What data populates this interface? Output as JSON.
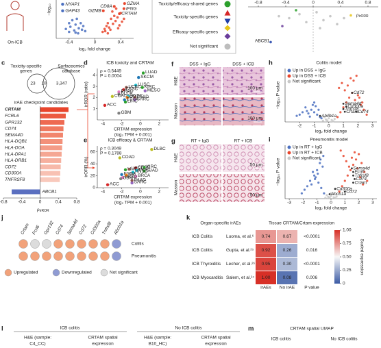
{
  "panel_a": {
    "label": "On-ICB",
    "y_label": "−log₁₀",
    "x_label": "log₂ fold change",
    "xlim": [
      -0.6,
      0.6
    ],
    "ylim": [
      0,
      5
    ],
    "xticks": [
      -0.4,
      0,
      0.4
    ],
    "down": {
      "x": [
        -0.45,
        -0.4,
        -0.38,
        -0.35,
        -0.32,
        -0.3,
        -0.28,
        -0.25,
        -0.22,
        -0.2,
        -0.18,
        -0.15,
        -0.3,
        -0.4,
        -0.26
      ],
      "y": [
        1.2,
        2.0,
        1.5,
        2.4,
        1.0,
        1.8,
        2.6,
        1.3,
        2.0,
        1.1,
        1.6,
        0.9,
        0.7,
        0.8,
        0.6
      ]
    },
    "up": {
      "x": [
        0.12,
        0.15,
        0.18,
        0.2,
        0.22,
        0.25,
        0.28,
        0.3,
        0.32,
        0.35,
        0.38,
        0.4,
        0.42,
        0.45,
        0.2,
        0.27,
        0.33,
        0.16,
        0.24,
        0.36
      ],
      "y": [
        0.8,
        1.2,
        1.6,
        2.0,
        1.4,
        2.6,
        1.9,
        3.0,
        2.3,
        2.8,
        1.7,
        3.4,
        2.2,
        2.6,
        0.6,
        3.6,
        4.0,
        0.9,
        1.1,
        1.3
      ]
    },
    "down_color": "#4a6fc0",
    "up_color": "#e8452c",
    "down_genes": [
      {
        "name": "NYAP1",
        "x": -0.5,
        "y": 4.6
      },
      {
        "name": "GAP43",
        "x": -0.5,
        "y": 3.7
      }
    ],
    "up_genes": [
      {
        "name": "GZMA",
        "x": 0.46,
        "y": 4.7
      },
      {
        "name": "CD8A",
        "x": 0.3,
        "y": 4.3
      },
      {
        "name": "IFNG",
        "x": 0.45,
        "y": 4.0
      },
      {
        "name": "GZMB",
        "x": 0.13,
        "y": 3.7
      },
      {
        "name": "CRTAM",
        "x": 0.38,
        "y": 3.3
      }
    ]
  },
  "panel_b": {
    "legend": [
      {
        "label": "Toxicity/efficacy-shared genes",
        "markers": [
          {
            "shape": "circle",
            "color": "#2ca02c"
          }
        ]
      },
      {
        "label": "Toxicity-specific genes",
        "markers": [
          {
            "shape": "triangle-up",
            "color": "#d62728"
          },
          {
            "shape": "triangle-down",
            "color": "#1f3fa8"
          }
        ]
      },
      {
        "label": "Efficacy-specific genes",
        "markers": [
          {
            "shape": "diamond",
            "color": "#e6c619"
          },
          {
            "shape": "diamond",
            "color": "#6a3d9a"
          }
        ]
      },
      {
        "label": "Not significant",
        "markers": [
          {
            "shape": "circle",
            "color": "#bdbdbd"
          }
        ]
      }
    ],
    "x_label": "ρ",
    "x_label_sub": "irORR",
    "xlim": [
      -0.95,
      0.95
    ],
    "xticks": [
      -0.8,
      -0.4,
      0,
      0.4,
      0.8
    ],
    "ylim": [
      -0.8,
      0.3
    ],
    "points": {
      "x": [
        -0.5,
        -0.35,
        -0.2,
        -0.1,
        0.05,
        0.15,
        0.25,
        0.35,
        0.45,
        -0.45,
        0.1,
        -0.25,
        0.55,
        -0.62
      ],
      "y": [
        0.1,
        0.05,
        0.15,
        -0.05,
        0.2,
        0.0,
        0.1,
        -0.1,
        0.05,
        -0.15,
        -0.2,
        0.25,
        0.12,
        -0.55
      ],
      "colors": [
        "#bdbdbd",
        "#bdbdbd",
        "#bdbdbd",
        "#bdbdbd",
        "#bdbdbd",
        "#bdbdbd",
        "#bdbdbd",
        "#bdbdbd",
        "#bdbdbd",
        "#6a3d9a",
        "#bdbdbd",
        "#2ca02c",
        "#e6c619",
        "#1f3fa8"
      ]
    },
    "abcb1_label": "ABCB1"
  },
  "panel_c": {
    "letter": "c",
    "venn_left": "Toxicity-specific",
    "venn_left2": "genes",
    "venn_right": "Surfaceomics",
    "venn_right2": "database",
    "n_left": "23",
    "n_both": "10",
    "n_right": "3,347",
    "candidates": "irAE checkpoint candidates",
    "genes": [
      "CRTAM",
      "FCRL6",
      "GPR132",
      "CD74",
      "SEMA4D",
      "HLA-DQB1",
      "HLA-DOA",
      "HLA-DPA1",
      "HLA-DRB1",
      "CD72",
      "CD300A",
      "TNFRSF8",
      "ABCB1"
    ],
    "values": [
      0.62,
      0.56,
      0.53,
      0.51,
      0.5,
      0.49,
      0.48,
      0.47,
      0.46,
      0.45,
      0.44,
      0.43,
      -0.62
    ],
    "colors": [
      "#e8452c",
      "#ec5a41",
      "#ee6a52",
      "#f07960",
      "#f2856d",
      "#f3917a",
      "#f49c87",
      "#f5a793",
      "#f6b09e",
      "#f7b9a9",
      "#f8c1b3",
      "#f9c9bc",
      "#5a6fc0"
    ],
    "xlim": [
      -0.8,
      0.8
    ],
    "xticks": [
      -0.8,
      -0.4,
      0,
      0.4,
      0.8
    ],
    "x_label": "ρ",
    "x_label_sub": "irROR"
  },
  "panel_d": {
    "letter": "d",
    "title": "ICB toxicity and CRTAM",
    "rho": "ρ = 0.5449",
    "p": "P = 0.0004",
    "y_label": "irROR (ratio)",
    "x_label": "CRTAM expression",
    "x_label2": "(log₂ TPM + 0.001)",
    "xlim": [
      -4.6,
      3
    ],
    "ylim": [
      0,
      4.6
    ],
    "xticks": [
      -4,
      -2,
      0,
      2
    ],
    "yticks": [
      1,
      2,
      3,
      4
    ],
    "names": [
      "LUAD",
      "SKCM",
      "LUSC",
      "UCEC",
      "KIRC",
      "CESC",
      "MESO",
      "PRAD",
      "BLCA",
      "COAD",
      "HNSC",
      "OV",
      "PAAD",
      "ESCA",
      "SARC",
      "LIHC",
      "ACC",
      "GBM"
    ],
    "x": [
      0.3,
      -0.2,
      -0.5,
      -1.5,
      0.2,
      -1.8,
      0.5,
      -2.3,
      -2.3,
      -3,
      -1.3,
      -1.4,
      -0.6,
      -1.7,
      -0.6,
      -1.6,
      -3.8,
      -2.3
    ],
    "y": [
      4.2,
      3.8,
      3.1,
      2.9,
      2.9,
      2.7,
      2.6,
      2.5,
      2.3,
      2.1,
      2.1,
      2.0,
      2.0,
      1.8,
      1.8,
      1.6,
      1.3,
      0.6
    ],
    "colors": [
      "#2ca02c",
      "#1f77b4",
      "#17becf",
      "#8c564b",
      "#2ca02c",
      "#d62728",
      "#9467bd",
      "#e377c2",
      "#7f7f7f",
      "#bcbd22",
      "#17becf",
      "#ff7f0e",
      "#8c564b",
      "#1f77b4",
      "#9467bd",
      "#2ca02c",
      "#d62728",
      "#7f7f7f"
    ]
  },
  "panel_e": {
    "letter": "e",
    "title": "ICB efficacy & CRTAM",
    "rho": "ρ = 0.3049",
    "p": "P = 0.1788",
    "y_label": "irORR (%)",
    "x_label": "CRTAM expression",
    "x_label2": "(log₂ TPM + 0.001)",
    "xlim": [
      -4.6,
      3
    ],
    "ylim": [
      0,
      70
    ],
    "xticks": [
      -4,
      -2,
      0,
      2
    ],
    "yticks": [
      0,
      20,
      40,
      60
    ],
    "names": [
      "DLBC",
      "COAD",
      "CESC",
      "KIRC",
      "LIHC",
      "UCEC",
      "LUSC",
      "LUAD",
      "HNSC",
      "ESCA",
      "OV",
      "BRCA",
      "PRAD",
      "GBM",
      "PAAD",
      "SARC",
      "ACC"
    ],
    "x": [
      1.2,
      -2.2,
      -0.5,
      0.4,
      -1.6,
      -1.2,
      -0.4,
      0.4,
      -0.8,
      -2,
      -1.5,
      -0.5,
      -1.9,
      -2.1,
      -0.9,
      -0.9,
      -3.5
    ],
    "y": [
      64,
      50,
      33,
      34,
      30,
      31,
      29,
      28,
      26,
      22,
      21,
      19,
      17,
      15,
      12,
      8,
      5
    ],
    "colors": [
      "#bcbd22",
      "#bcbd22",
      "#d62728",
      "#2ca02c",
      "#2ca02c",
      "#8c564b",
      "#17becf",
      "#2ca02c",
      "#17becf",
      "#1f77b4",
      "#ff7f0e",
      "#e377c2",
      "#e377c2",
      "#7f7f7f",
      "#8c564b",
      "#9467bd",
      "#d62728"
    ]
  },
  "panel_f": {
    "letter": "f",
    "cols": [
      "DSS + IgG",
      "DSS + ICB"
    ],
    "rows": [
      "H&E",
      "Masson"
    ],
    "scale": "100 μm"
  },
  "panel_g": {
    "letter": "g",
    "cols": [
      "RT + IgG",
      "RT + ICB"
    ],
    "rows": [
      "H&E",
      "Masson"
    ],
    "scale": "50 μm"
  },
  "panel_h": {
    "letter": "h",
    "title": "Colitis model",
    "legend": [
      "Up in DSS + IgG",
      "Up in DSS + ICB",
      "Not significant"
    ],
    "colors": [
      "#4a6fc0",
      "#e8452c",
      "#c8c8c8"
    ],
    "y_label": "−log₁₀ P value",
    "x_label": "log₂ fold change",
    "xlim": [
      -3,
      3.3
    ],
    "ylim": [
      0,
      22
    ],
    "xticks": [
      -2,
      -1,
      0,
      1,
      2,
      3
    ],
    "down": {
      "x": [
        -0.6,
        -0.8,
        -1,
        -1.2,
        -1.4,
        -1.6,
        -1.8,
        -2,
        -2.2,
        -0.7,
        -0.9,
        -1.1,
        -1.3,
        -1.5,
        -0.5,
        -1.0
      ],
      "y": [
        2,
        3,
        4,
        5,
        3.5,
        6,
        4,
        3,
        2.5,
        5,
        6.5,
        7,
        2.2,
        4.5,
        1.5,
        8
      ]
    },
    "up": {
      "x": [
        0.6,
        0.8,
        1,
        1.2,
        1.4,
        1.6,
        1.8,
        2,
        2.2,
        2.4,
        2.6,
        0.7,
        0.9,
        1.1,
        1.3,
        1.5,
        1.7,
        1.9,
        2.1,
        2.3
      ],
      "y": [
        2,
        4,
        6,
        8,
        10,
        12,
        9,
        11,
        7,
        5,
        3,
        14,
        16,
        13,
        15,
        18,
        17,
        19,
        10,
        8
      ]
    },
    "ns": {
      "x": [
        -0.4,
        -0.2,
        0,
        0.2,
        0.4,
        -0.3,
        0.1,
        0.3,
        -0.1,
        0
      ],
      "y": [
        0.5,
        1,
        1.5,
        0.8,
        1.2,
        2,
        2.5,
        0.3,
        0.6,
        3
      ]
    },
    "genes": [
      {
        "name": "Cd72",
        "x": 1.6,
        "y": 12
      },
      {
        "name": "Sema4d",
        "x": 1.0,
        "y": 7.5
      },
      {
        "name": "Cd300a",
        "x": 1.2,
        "y": 6.4
      },
      {
        "name": "Tnfrsf8",
        "x": 1.0,
        "y": 5.3
      },
      {
        "name": "Crtam",
        "x": 1.1,
        "y": 4.2
      },
      {
        "name": "Cd74",
        "x": 1.9,
        "y": 4.2
      },
      {
        "name": "Abcb1a",
        "x": -0.6,
        "y": 2.5
      }
    ]
  },
  "panel_i": {
    "letter": "i",
    "title": "Pneumonitis model",
    "legend": [
      "Up in RT + IgG",
      "Up in RT + ICB",
      "Not significant"
    ],
    "colors": [
      "#4a6fc0",
      "#e8452c",
      "#c8c8c8"
    ],
    "y_label": "−log₁₀ P value",
    "x_label": "log₂ fold change",
    "xlim": [
      -3.3,
      3.3
    ],
    "ylim": [
      0,
      30
    ],
    "xticks": [
      -3,
      -2,
      -1,
      0,
      1,
      2,
      3
    ],
    "down": {
      "x": [
        -0.5,
        -0.7,
        -0.9,
        -1.1,
        -1.3,
        -1.5,
        -1.7,
        -1.9,
        -2.1,
        -0.6,
        -0.8,
        -1.0,
        -1.2,
        -1.4,
        -0.55,
        -0.75,
        -0.95,
        -1.15
      ],
      "y": [
        3,
        6,
        9,
        12,
        15,
        10,
        7,
        5,
        3,
        18,
        20,
        16,
        13,
        8,
        24,
        22,
        14,
        11
      ]
    },
    "up": {
      "x": [
        0.6,
        0.8,
        1,
        1.2,
        1.4,
        1.6,
        1.8,
        2,
        2.2,
        2.4,
        2.6,
        0.7,
        0.9,
        1.1,
        1.3,
        1.5,
        1.7,
        1.9,
        2.1,
        2.3
      ],
      "y": [
        4,
        7,
        10,
        13,
        16,
        19,
        22,
        25,
        20,
        15,
        10,
        27,
        24,
        21,
        18,
        23,
        26,
        17,
        12,
        8
      ]
    },
    "ns": {
      "x": [
        -0.4,
        -0.2,
        0,
        0.2,
        0.4,
        -0.3,
        0.1,
        0.3,
        -0.1,
        0
      ],
      "y": [
        0.5,
        1,
        1.5,
        0.8,
        1.2,
        2,
        2.5,
        0.3,
        0.6,
        3
      ]
    },
    "genes": [
      {
        "name": "Sema4d",
        "x": 1.5,
        "y": 17
      },
      {
        "name": "Fcrl6",
        "x": 1.6,
        "y": 15
      },
      {
        "name": "Tnfrsf8",
        "x": 1.6,
        "y": 13
      },
      {
        "name": "Cd74",
        "x": 1.7,
        "y": 11
      },
      {
        "name": "Crtam",
        "x": 1.6,
        "y": 9
      },
      {
        "name": "Cd300a",
        "x": 0.3,
        "y": 5.5
      },
      {
        "name": "Cd72",
        "x": 1.0,
        "y": 4
      },
      {
        "name": "Abcb1a",
        "x": -0.1,
        "y": 2.5
      }
    ]
  },
  "panel_j": {
    "letter": "j",
    "genes": [
      "Crtam",
      "Fcrl6",
      "Gpr132",
      "Cd74",
      "Sema4d",
      "Cd72",
      "Cd300a",
      "Tnfrsf8",
      "Abcb1a"
    ],
    "rows": [
      "Colitis",
      "Pneumonitis"
    ],
    "status": [
      [
        0,
        2,
        2,
        0,
        0,
        0,
        0,
        0,
        1
      ],
      [
        0,
        0,
        0,
        0,
        0,
        0,
        0,
        0,
        1
      ]
    ],
    "legend": [
      {
        "label": "Upregulated",
        "color": "#f2a27a"
      },
      {
        "label": "Downregulated",
        "color": "#8f9bd3"
      },
      {
        "label": "Not significant",
        "color": "#dcdcdc"
      }
    ]
  },
  "panel_k": {
    "letter": "k",
    "title_left": "Organ-specific irAEs",
    "title_right": "Tissue CRTAM/Crtam expression",
    "rows": [
      {
        "irae": "ICB Colitis",
        "ref": "Luoma, et al.⁶",
        "values": [
          0.74,
          0.67
        ],
        "p": "<0.0001"
      },
      {
        "irae": "ICB Colitis",
        "ref": "Gupta, et al.²⁵",
        "values": [
          0.92,
          0.26
        ],
        "p": "0.016"
      },
      {
        "irae": "ICB Thyroiditis",
        "ref": "Lecher, et al.²⁶",
        "values": [
          0.95,
          0.3
        ],
        "p": "<0.0001"
      },
      {
        "irae": "ICB Myocarditis",
        "ref": "Salem, et al.²⁴",
        "values": [
          1.0,
          0.08
        ],
        "p": "0.006"
      }
    ],
    "value_labels": [
      [
        "0.74",
        "0.67"
      ],
      [
        "0.92",
        "0.26"
      ],
      [
        "0.95",
        "0.30"
      ],
      [
        "1.00",
        "0.08"
      ]
    ],
    "columns": [
      "irAEs",
      "No irAE",
      "P value"
    ],
    "colorbar": {
      "title": "Scaled expression",
      "lim": [
        0,
        1
      ],
      "ticks": [
        0,
        {
          "value": 0.25,
          "label": "0.25"
        },
        {
          "value": 0.5,
          "label": "0.50"
        },
        {
          "value": 0.75,
          "label": "0.75"
        },
        {
          "value": 1,
          "label": "1.00"
        }
      ],
      "colors": [
        "#3b5ba5",
        "#f7f7f7",
        "#d73027"
      ]
    }
  },
  "panel_l": {
    "letter": "l",
    "group1": "ICB colitis",
    "group2": "No ICB colitis",
    "he1": "H&E (sample:",
    "he1b": "C4_CC)",
    "sp1": "CRTAM spatial",
    "sp1b": "expression",
    "he2": "H&E (sample:",
    "he2b": "B10_HC)",
    "sp2": "CRTAM spatial",
    "sp2b": "expression"
  },
  "panel_m": {
    "letter": "m",
    "title": "CRTAM spatial UMAP",
    "group1": "ICB colitis",
    "group2": "No ICB colitis"
  }
}
